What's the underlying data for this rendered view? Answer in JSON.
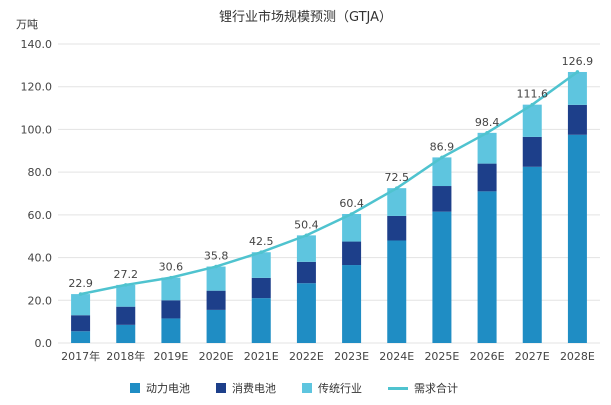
{
  "chart_data": {
    "type": "bar",
    "title": "锂行业市场规模预测（GTJA）",
    "y_unit": "万吨",
    "ylim": [
      0,
      140
    ],
    "yticks": [
      0,
      20,
      40,
      60,
      80,
      100,
      120,
      140
    ],
    "ytick_labels": [
      "0.0",
      "20.0",
      "40.0",
      "60.0",
      "80.0",
      "100.0",
      "120.0",
      "140.0"
    ],
    "grid": "horizontal",
    "legend_position": "bottom",
    "categories": [
      "2017年",
      "2018年",
      "2019E",
      "2020E",
      "2021E",
      "2022E",
      "2023E",
      "2024E",
      "2025E",
      "2026E",
      "2027E",
      "2028E"
    ],
    "series": [
      {
        "name": "动力电池",
        "color": "#1f8dc4",
        "values": [
          5.5,
          8.5,
          11.5,
          15.5,
          21.0,
          28.0,
          36.5,
          48.0,
          61.5,
          71.0,
          82.5,
          97.5
        ]
      },
      {
        "name": "消费电池",
        "color": "#1d3f8a",
        "values": [
          7.5,
          8.5,
          8.5,
          9.0,
          9.5,
          10.0,
          11.0,
          11.5,
          12.0,
          13.0,
          14.0,
          14.0
        ]
      },
      {
        "name": "传统行业",
        "color": "#5ec5df",
        "values": [
          9.9,
          10.2,
          10.6,
          11.3,
          12.0,
          12.4,
          12.9,
          13.0,
          13.4,
          14.4,
          15.1,
          15.4
        ]
      }
    ],
    "line": {
      "name": "需求合计",
      "color": "#4fc3cf",
      "values": [
        22.9,
        27.2,
        30.6,
        35.8,
        42.5,
        50.4,
        60.4,
        72.5,
        86.9,
        98.4,
        111.6,
        126.9
      ]
    },
    "data_labels": [
      "22.9",
      "27.2",
      "30.6",
      "35.8",
      "42.5",
      "50.4",
      "60.4",
      "72.5",
      "86.9",
      "98.4",
      "111.6",
      "126.9"
    ]
  }
}
